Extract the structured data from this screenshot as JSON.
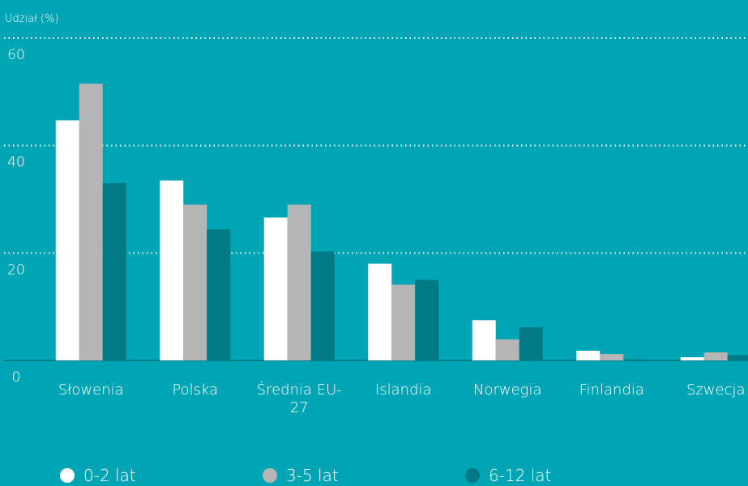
{
  "chart_data": {
    "type": "bar",
    "y_label": "Udział (%)",
    "categories": [
      "Słowenia",
      "Polska",
      "Średnia EU-27",
      "Islandia",
      "Norwegia",
      "Finlandia",
      "Szwecja"
    ],
    "series": [
      {
        "name": "0-2 lat",
        "color": "#ffffff",
        "values": [
          44.7,
          33.5,
          26.6,
          18,
          7.5,
          1.8,
          0.6
        ]
      },
      {
        "name": "3-5 lat",
        "color": "#b5b5b5",
        "values": [
          51.5,
          29,
          29,
          14.1,
          3.9,
          1.2,
          1.5
        ]
      },
      {
        "name": "6-12 lat",
        "color": "#007a85",
        "values": [
          33,
          24.4,
          20.3,
          15,
          6.2,
          0.2,
          1
        ]
      }
    ],
    "ylim": [
      0,
      60
    ],
    "yticks": [
      0,
      20,
      40,
      60
    ],
    "grid": true,
    "legend": "bottom"
  }
}
